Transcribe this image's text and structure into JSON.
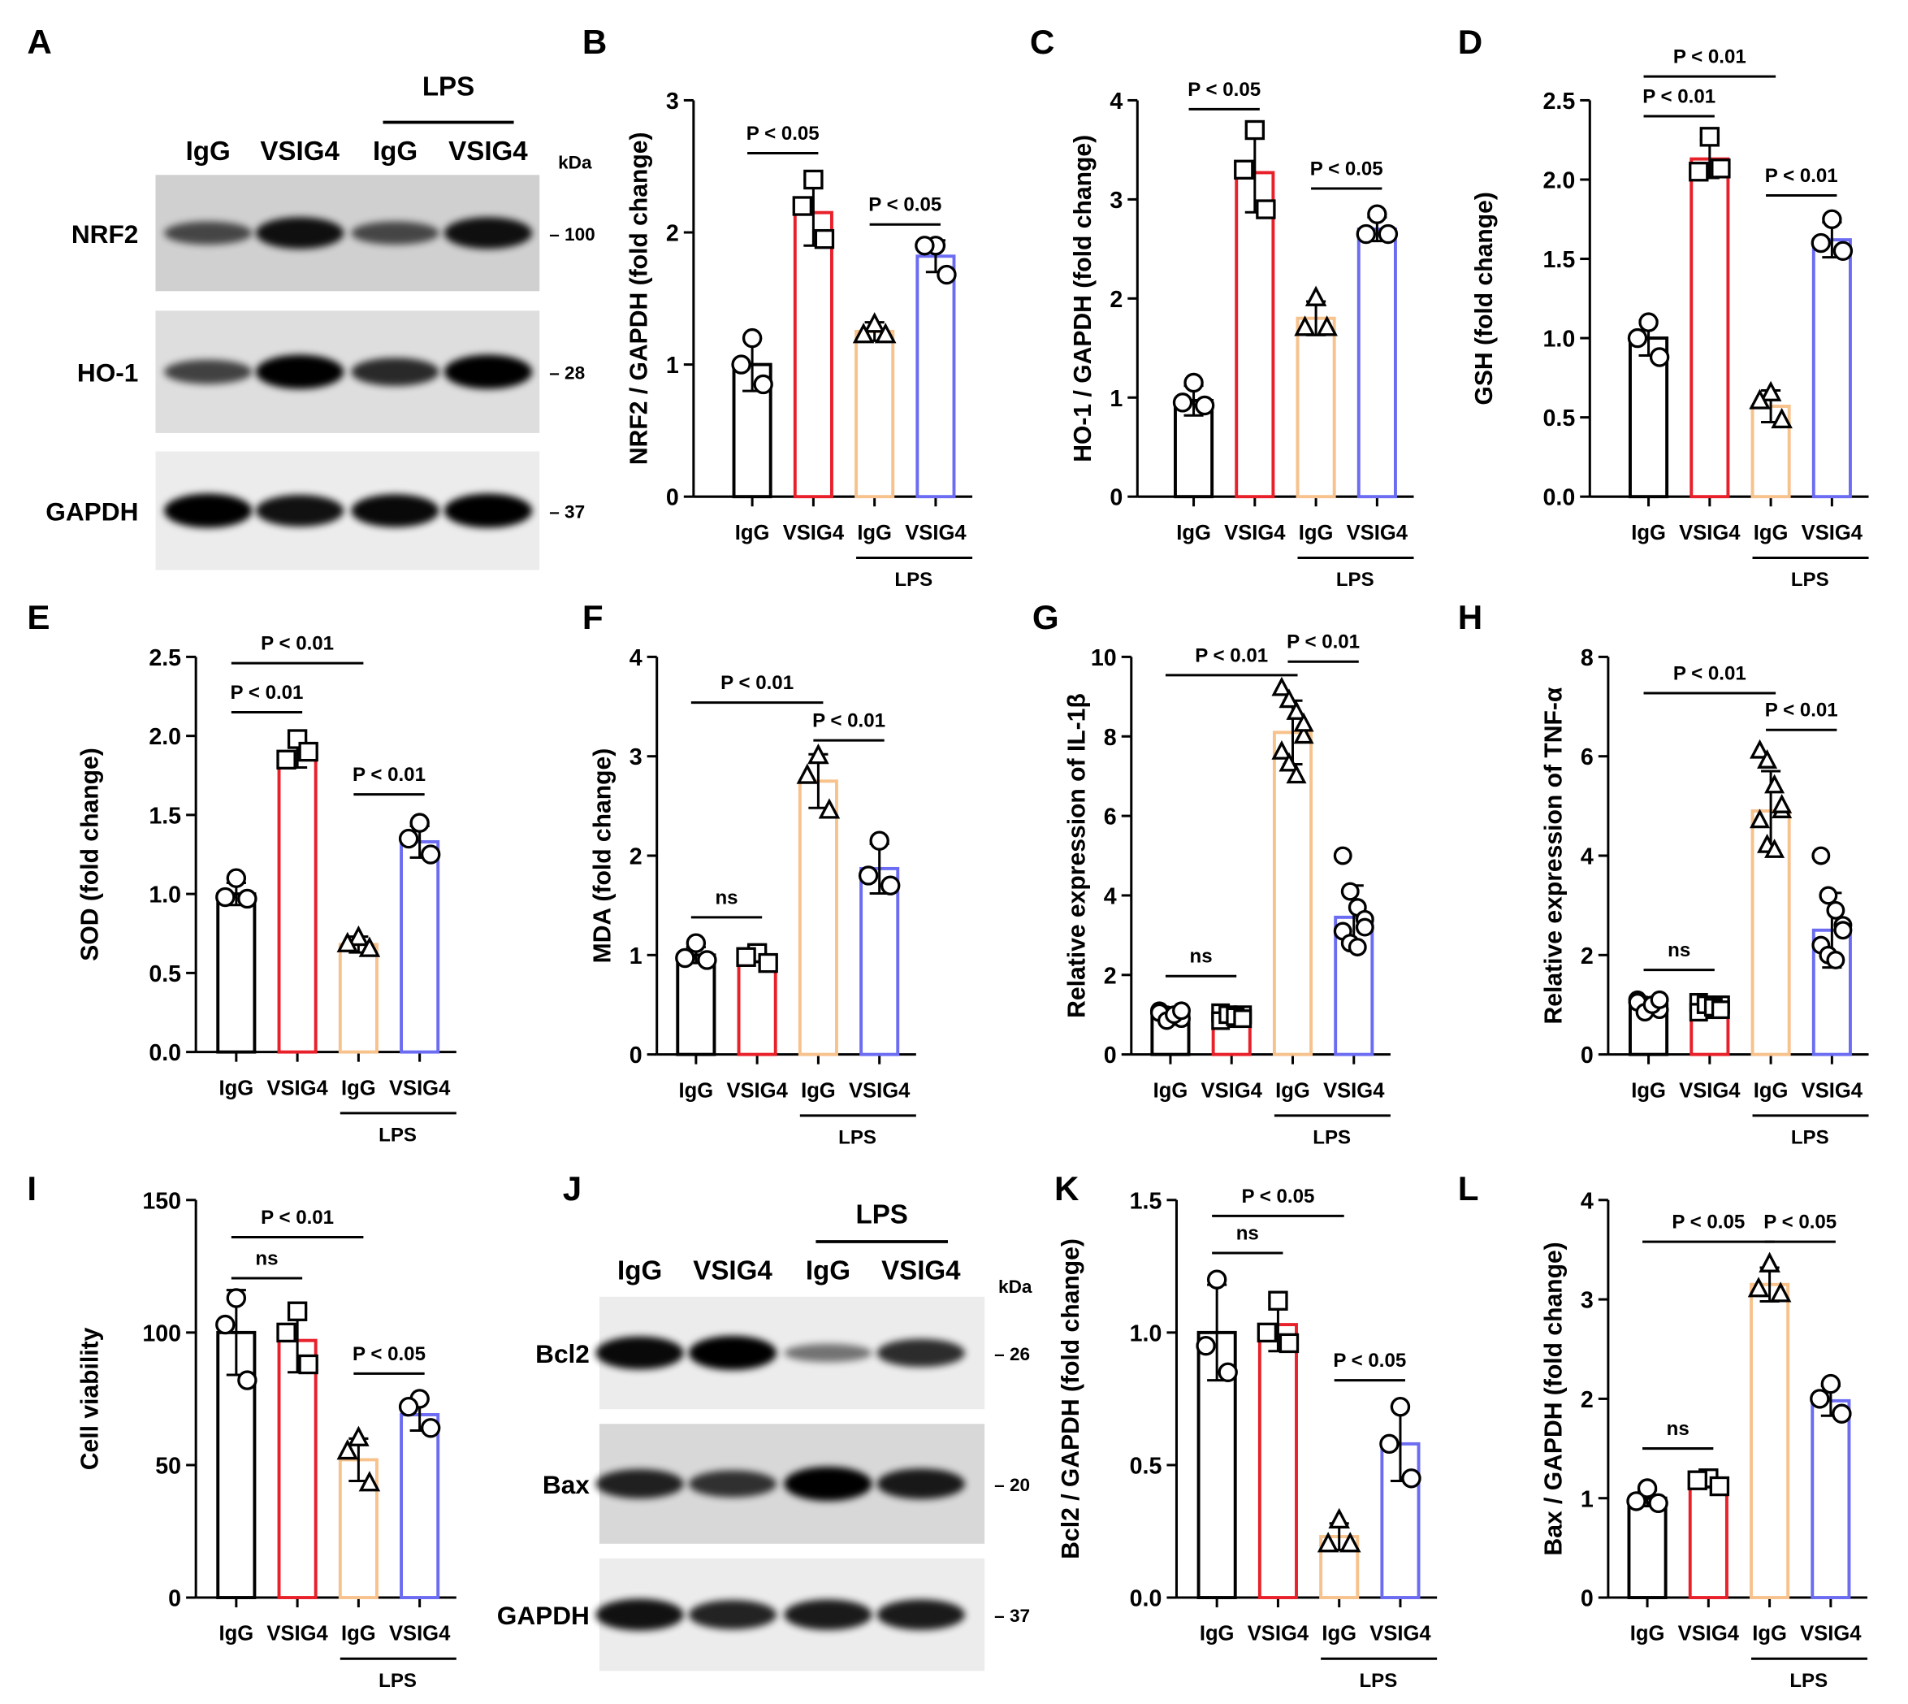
{
  "colors": {
    "IgG": "#000000",
    "VSIG4": "#e8202a",
    "LPS_IgG": "#f7c28c",
    "LPS_VSIG4": "#6b6cf2"
  },
  "group_labels": [
    "IgG",
    "VSIG4",
    "IgG",
    "VSIG4"
  ],
  "lps_label": "LPS",
  "blots": [
    {
      "panel": "A",
      "header": "LPS",
      "lanes": [
        "IgG",
        "VSIG4",
        "IgG",
        "VSIG4"
      ],
      "unit": "kDa",
      "rows": [
        {
          "name": "NRF2",
          "marker": "– 100",
          "band_intensity": [
            0.55,
            0.9,
            0.55,
            0.9
          ]
        },
        {
          "name": "HO-1",
          "marker": "– 28",
          "band_intensity": [
            0.6,
            1.0,
            0.75,
            1.0
          ]
        },
        {
          "name": "GAPDH",
          "marker": "– 37",
          "band_intensity": [
            1.0,
            0.9,
            0.95,
            1.0
          ]
        }
      ]
    },
    {
      "panel": "J",
      "header": "LPS",
      "lanes": [
        "IgG",
        "VSIG4",
        "IgG",
        "VSIG4"
      ],
      "unit": "kDa",
      "rows": [
        {
          "name": "Bcl2",
          "marker": "– 26",
          "band_intensity": [
            0.95,
            1.0,
            0.35,
            0.75
          ]
        },
        {
          "name": "Bax",
          "marker": "– 20",
          "band_intensity": [
            0.8,
            0.7,
            1.0,
            0.85
          ]
        },
        {
          "name": "GAPDH",
          "marker": "– 37",
          "band_intensity": [
            0.9,
            0.8,
            0.85,
            0.85
          ]
        }
      ]
    }
  ],
  "chart_data": [
    {
      "panel": "B",
      "type": "bar",
      "ylabel": "NRF2 / GAPDH (fold change)",
      "ylim": [
        0,
        3
      ],
      "ticks": [
        "0",
        "1",
        "2",
        "3"
      ],
      "categories": [
        "IgG",
        "VSIG4",
        "LPS IgG",
        "LPS VSIG4"
      ],
      "markers": [
        "circle",
        "square",
        "triangle",
        "circle"
      ],
      "means": [
        1.0,
        2.15,
        1.25,
        1.82
      ],
      "sd": [
        0.2,
        0.25,
        0.07,
        0.12
      ],
      "points": [
        [
          1.2,
          1.0,
          0.85
        ],
        [
          2.4,
          2.2,
          1.95
        ],
        [
          1.3,
          1.22,
          1.22
        ],
        [
          1.9,
          1.9,
          1.68
        ]
      ],
      "significance": [
        {
          "from": 0,
          "to": 1,
          "y": 2.6,
          "label": "P < 0.05"
        },
        {
          "from": 2,
          "to": 3,
          "y": 2.06,
          "label": "P < 0.05"
        }
      ]
    },
    {
      "panel": "C",
      "type": "bar",
      "ylabel": "HO-1 / GAPDH (fold change)",
      "ylim": [
        0,
        4
      ],
      "ticks": [
        "0",
        "1",
        "2",
        "3",
        "4"
      ],
      "categories": [
        "IgG",
        "VSIG4",
        "LPS IgG",
        "LPS VSIG4"
      ],
      "markers": [
        "circle",
        "square",
        "triangle",
        "circle"
      ],
      "means": [
        0.97,
        3.27,
        1.8,
        2.7
      ],
      "sd": [
        0.15,
        0.4,
        0.17,
        0.12
      ],
      "points": [
        [
          1.15,
          0.95,
          0.92
        ],
        [
          3.7,
          3.3,
          2.9
        ],
        [
          2.0,
          1.7,
          1.7
        ],
        [
          2.85,
          2.65,
          2.65
        ]
      ],
      "significance": [
        {
          "from": 0,
          "to": 1,
          "y": 3.91,
          "label": "P < 0.05"
        },
        {
          "from": 2,
          "to": 3,
          "y": 3.11,
          "label": "P < 0.05"
        }
      ]
    },
    {
      "panel": "D",
      "type": "bar",
      "ylabel": "GSH (fold change)",
      "ylim": [
        0,
        2.5
      ],
      "ticks": [
        "0.0",
        "0.5",
        "1.0",
        "1.5",
        "2.0",
        "2.5"
      ],
      "categories": [
        "IgG",
        "VSIG4",
        "LPS IgG",
        "LPS VSIG4"
      ],
      "markers": [
        "circle",
        "square",
        "triangle",
        "circle"
      ],
      "means": [
        1.0,
        2.13,
        0.57,
        1.62
      ],
      "sd": [
        0.11,
        0.12,
        0.1,
        0.11
      ],
      "points": [
        [
          1.1,
          1.0,
          0.88
        ],
        [
          2.27,
          2.05,
          2.07
        ],
        [
          0.65,
          0.6,
          0.48
        ],
        [
          1.75,
          1.6,
          1.55
        ]
      ],
      "significance": [
        {
          "from": 0,
          "to": 2,
          "y": 2.65,
          "label": "P < 0.01"
        },
        {
          "from": 0,
          "to": 1,
          "y": 2.4,
          "label": "P < 0.01"
        },
        {
          "from": 2,
          "to": 3,
          "y": 1.9,
          "label": "P < 0.01"
        }
      ]
    },
    {
      "panel": "E",
      "type": "bar",
      "ylabel": "SOD (fold change)",
      "ylim": [
        0,
        2.5
      ],
      "ticks": [
        "0.0",
        "0.5",
        "1.0",
        "1.5",
        "2.0",
        "2.5"
      ],
      "categories": [
        "IgG",
        "VSIG4",
        "LPS IgG",
        "LPS VSIG4"
      ],
      "markers": [
        "circle",
        "square",
        "triangle",
        "circle"
      ],
      "means": [
        1.0,
        1.88,
        0.68,
        1.33
      ],
      "sd": [
        0.07,
        0.08,
        0.05,
        0.1
      ],
      "points": [
        [
          1.1,
          0.98,
          0.97
        ],
        [
          1.98,
          1.85,
          1.9
        ],
        [
          0.72,
          0.68,
          0.65
        ],
        [
          1.45,
          1.35,
          1.25
        ]
      ],
      "significance": [
        {
          "from": 0,
          "to": 2,
          "y": 2.46,
          "label": "P < 0.01"
        },
        {
          "from": 0,
          "to": 1,
          "y": 2.15,
          "label": "P < 0.01"
        },
        {
          "from": 2,
          "to": 3,
          "y": 1.63,
          "label": "P < 0.01"
        }
      ]
    },
    {
      "panel": "F",
      "type": "bar",
      "ylabel": "MDA (fold change)",
      "ylim": [
        0,
        4
      ],
      "ticks": [
        "0",
        "1",
        "2",
        "3",
        "4"
      ],
      "categories": [
        "IgG",
        "VSIG4",
        "LPS IgG",
        "LPS VSIG4"
      ],
      "markers": [
        "circle",
        "square",
        "triangle",
        "circle"
      ],
      "means": [
        1.0,
        0.98,
        2.75,
        1.87
      ],
      "sd": [
        0.08,
        0.05,
        0.27,
        0.25
      ],
      "points": [
        [
          1.12,
          0.97,
          0.95
        ],
        [
          1.02,
          0.98,
          0.92
        ],
        [
          3.0,
          2.8,
          2.45
        ],
        [
          2.15,
          1.8,
          1.7
        ]
      ],
      "significance": [
        {
          "from": 0,
          "to": 1,
          "y": 1.38,
          "label": "ns"
        },
        {
          "from": 0,
          "to": 2,
          "y": 3.54,
          "label": "P < 0.01"
        },
        {
          "from": 2,
          "to": 3,
          "y": 3.16,
          "label": "P < 0.01"
        }
      ]
    },
    {
      "panel": "G",
      "type": "bar",
      "ylabel": "Relative expression of IL-1β",
      "ylim": [
        0,
        10
      ],
      "ticks": [
        "0",
        "2",
        "4",
        "6",
        "8",
        "10"
      ],
      "categories": [
        "IgG",
        "VSIG4",
        "LPS IgG",
        "LPS VSIG4"
      ],
      "markers": [
        "circle",
        "square",
        "triangle",
        "circle"
      ],
      "means": [
        1.0,
        0.95,
        8.1,
        3.45
      ],
      "sd": [
        0.12,
        0.1,
        0.8,
        0.8
      ],
      "points": [
        [
          1.1,
          1.0,
          0.95,
          0.9,
          1.05,
          0.85,
          1.0,
          1.1
        ],
        [
          1.05,
          0.95,
          0.9,
          1.0,
          0.85,
          1.0,
          0.95,
          0.9
        ],
        [
          9.2,
          8.9,
          8.6,
          8.0,
          7.6,
          7.3,
          7.0,
          8.3
        ],
        [
          5.0,
          4.1,
          3.7,
          3.4,
          3.1,
          2.8,
          2.7,
          3.2
        ]
      ],
      "significance": [
        {
          "from": 0,
          "to": 1,
          "y": 1.97,
          "label": "ns"
        },
        {
          "from": 0,
          "to": 2,
          "y": 9.54,
          "label": "P < 0.01"
        },
        {
          "from": 2,
          "to": 3,
          "y": 9.88,
          "label": "P < 0.01"
        }
      ]
    },
    {
      "panel": "H",
      "type": "bar",
      "ylabel": "Relative expression of TNF-α",
      "ylim": [
        0,
        8
      ],
      "ticks": [
        "0",
        "2",
        "4",
        "6",
        "8"
      ],
      "categories": [
        "IgG",
        "VSIG4",
        "LPS IgG",
        "LPS VSIG4"
      ],
      "markers": [
        "circle",
        "square",
        "triangle",
        "circle"
      ],
      "means": [
        1.0,
        0.95,
        4.9,
        2.5
      ],
      "sd": [
        0.1,
        0.1,
        0.8,
        0.75
      ],
      "points": [
        [
          1.1,
          1.0,
          0.95,
          0.9,
          1.05,
          0.85,
          1.0,
          1.1
        ],
        [
          1.05,
          0.95,
          0.9,
          1.0,
          0.85,
          1.0,
          0.95,
          0.9
        ],
        [
          6.1,
          5.9,
          5.4,
          4.9,
          4.7,
          4.2,
          4.1,
          5.0
        ],
        [
          4.0,
          3.2,
          2.9,
          2.6,
          2.2,
          2.0,
          1.9,
          2.5
        ]
      ],
      "significance": [
        {
          "from": 0,
          "to": 1,
          "y": 1.7,
          "label": "ns"
        },
        {
          "from": 0,
          "to": 2,
          "y": 7.27,
          "label": "P < 0.01"
        },
        {
          "from": 2,
          "to": 3,
          "y": 6.53,
          "label": "P < 0.01"
        }
      ]
    },
    {
      "panel": "I",
      "type": "bar",
      "ylabel": "Cell viability",
      "ylim": [
        0,
        150
      ],
      "ticks": [
        "0",
        "50",
        "100",
        "150"
      ],
      "categories": [
        "IgG",
        "VSIG4",
        "LPS IgG",
        "LPS VSIG4"
      ],
      "markers": [
        "circle",
        "square",
        "triangle",
        "circle"
      ],
      "means": [
        100,
        97,
        52,
        69
      ],
      "sd": [
        16,
        12,
        8,
        6
      ],
      "points": [
        [
          113,
          103,
          82
        ],
        [
          108,
          100,
          88
        ],
        [
          60,
          55,
          43
        ],
        [
          75,
          72,
          64
        ]
      ],
      "significance": [
        {
          "from": 0,
          "to": 1,
          "y": 120.5,
          "label": "ns"
        },
        {
          "from": 0,
          "to": 2,
          "y": 136,
          "label": "P < 0.01"
        },
        {
          "from": 2,
          "to": 3,
          "y": 84.5,
          "label": "P < 0.05"
        }
      ]
    },
    {
      "panel": "K",
      "type": "bar",
      "ylabel": "Bcl2 / GAPDH (fold change)",
      "ylim": [
        0,
        1.5
      ],
      "ticks": [
        "0.0",
        "0.5",
        "1.0",
        "1.5"
      ],
      "categories": [
        "IgG",
        "VSIG4",
        "LPS IgG",
        "LPS VSIG4"
      ],
      "markers": [
        "circle",
        "square",
        "triangle",
        "circle"
      ],
      "means": [
        1.0,
        1.03,
        0.23,
        0.58
      ],
      "sd": [
        0.18,
        0.1,
        0.05,
        0.14
      ],
      "points": [
        [
          1.2,
          0.95,
          0.85
        ],
        [
          1.12,
          1.0,
          0.96
        ],
        [
          0.29,
          0.2,
          0.2
        ],
        [
          0.72,
          0.58,
          0.45
        ]
      ],
      "significance": [
        {
          "from": 0,
          "to": 1,
          "y": 1.3,
          "label": "ns"
        },
        {
          "from": 0,
          "to": 2,
          "y": 1.44,
          "label": "P < 0.05"
        },
        {
          "from": 2,
          "to": 3,
          "y": 0.82,
          "label": "P < 0.05"
        }
      ]
    },
    {
      "panel": "L",
      "type": "bar",
      "ylabel": "Bax / GAPDH (fold change)",
      "ylim": [
        0,
        4
      ],
      "ticks": [
        "0",
        "1",
        "2",
        "3",
        "4"
      ],
      "categories": [
        "IgG",
        "VSIG4",
        "LPS IgG",
        "LPS VSIG4"
      ],
      "markers": [
        "circle",
        "square",
        "triangle",
        "circle"
      ],
      "means": [
        1.0,
        1.15,
        3.15,
        1.98
      ],
      "sd": [
        0.08,
        0.04,
        0.17,
        0.15
      ],
      "points": [
        [
          1.1,
          0.97,
          0.95
        ],
        [
          1.2,
          1.18,
          1.12
        ],
        [
          3.35,
          3.1,
          3.05
        ],
        [
          2.15,
          2.0,
          1.85
        ]
      ],
      "significance": [
        {
          "from": 0,
          "to": 1,
          "y": 1.5,
          "label": "ns"
        },
        {
          "from": 0,
          "to": 2,
          "y": 3.58,
          "label": "P < 0.05"
        },
        {
          "from": 2,
          "to": 3,
          "y": 3.58,
          "label": "P < 0.05"
        }
      ]
    }
  ]
}
